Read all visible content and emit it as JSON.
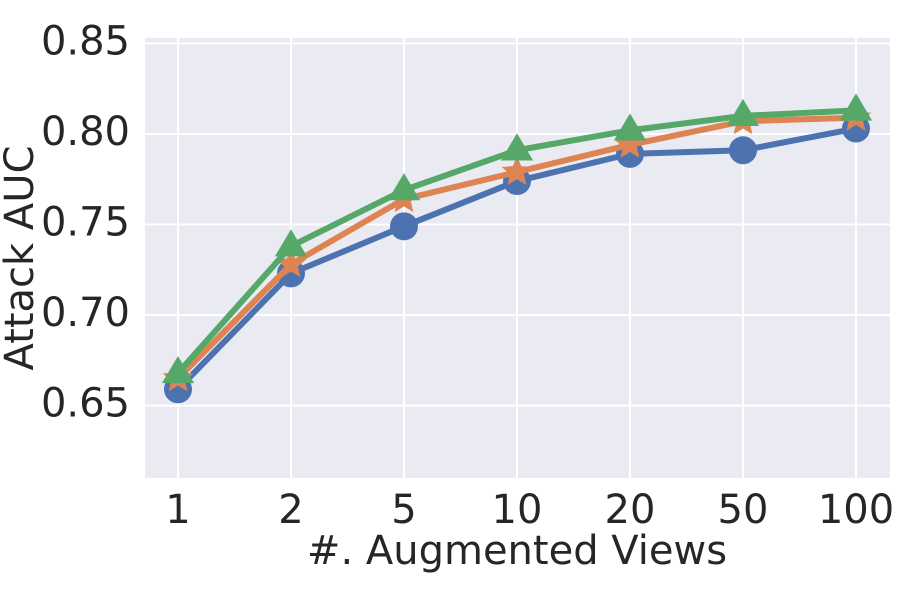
{
  "chart_data": {
    "type": "line",
    "xlabel": "#. Augmented Views",
    "ylabel": "Attack AUC",
    "categories": [
      "1",
      "2",
      "5",
      "10",
      "20",
      "50",
      "100"
    ],
    "series": [
      {
        "color": "#4c72b0",
        "marker": "circle",
        "values": [
          0.659,
          0.723,
          0.749,
          0.774,
          0.789,
          0.791,
          0.803
        ]
      },
      {
        "color": "#dd8452",
        "marker": "star",
        "values": [
          0.665,
          0.728,
          0.764,
          0.779,
          0.794,
          0.807,
          0.809
        ]
      },
      {
        "color": "#55a868",
        "marker": "triangle",
        "values": [
          0.668,
          0.738,
          0.769,
          0.791,
          0.802,
          0.81,
          0.813
        ]
      }
    ],
    "ylim": [
      0.61,
      0.853
    ],
    "yticks": [
      0.65,
      {
        "value": 0.7,
        "label": "0.70"
      },
      0.75,
      {
        "value": 0.8,
        "label": "0.80"
      },
      0.85
    ],
    "grid": true
  }
}
